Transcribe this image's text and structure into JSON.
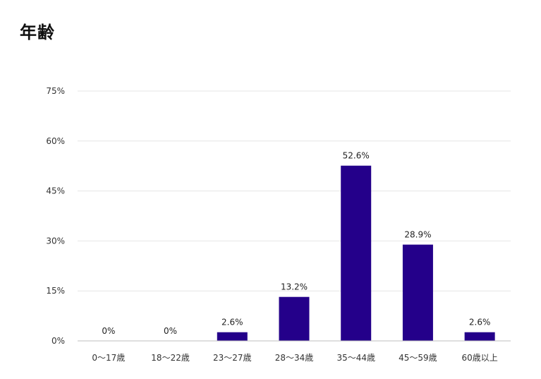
{
  "title": "年齢",
  "colors": {
    "bar": "#24008a",
    "grid": "#e6e6e6",
    "axis": "#bfbfbf"
  },
  "chart_data": {
    "type": "bar",
    "title": "年齢",
    "categories": [
      "0〜17歳",
      "18〜22歳",
      "23〜27歳",
      "28〜34歳",
      "35〜44歳",
      "45〜59歳",
      "60歳以上"
    ],
    "values": [
      0,
      0,
      2.6,
      13.2,
      52.6,
      28.9,
      2.6
    ],
    "data_labels": [
      "0%",
      "0%",
      "2.6%",
      "13.2%",
      "52.6%",
      "28.9%",
      "2.6%"
    ],
    "y_ticks": [
      0,
      15,
      30,
      45,
      60,
      75
    ],
    "y_tick_labels": [
      "0%",
      "15%",
      "30%",
      "45%",
      "60%",
      "75%"
    ],
    "ylim": [
      0,
      75
    ],
    "xlabel": "",
    "ylabel": "",
    "grid": true,
    "legend": "none"
  }
}
